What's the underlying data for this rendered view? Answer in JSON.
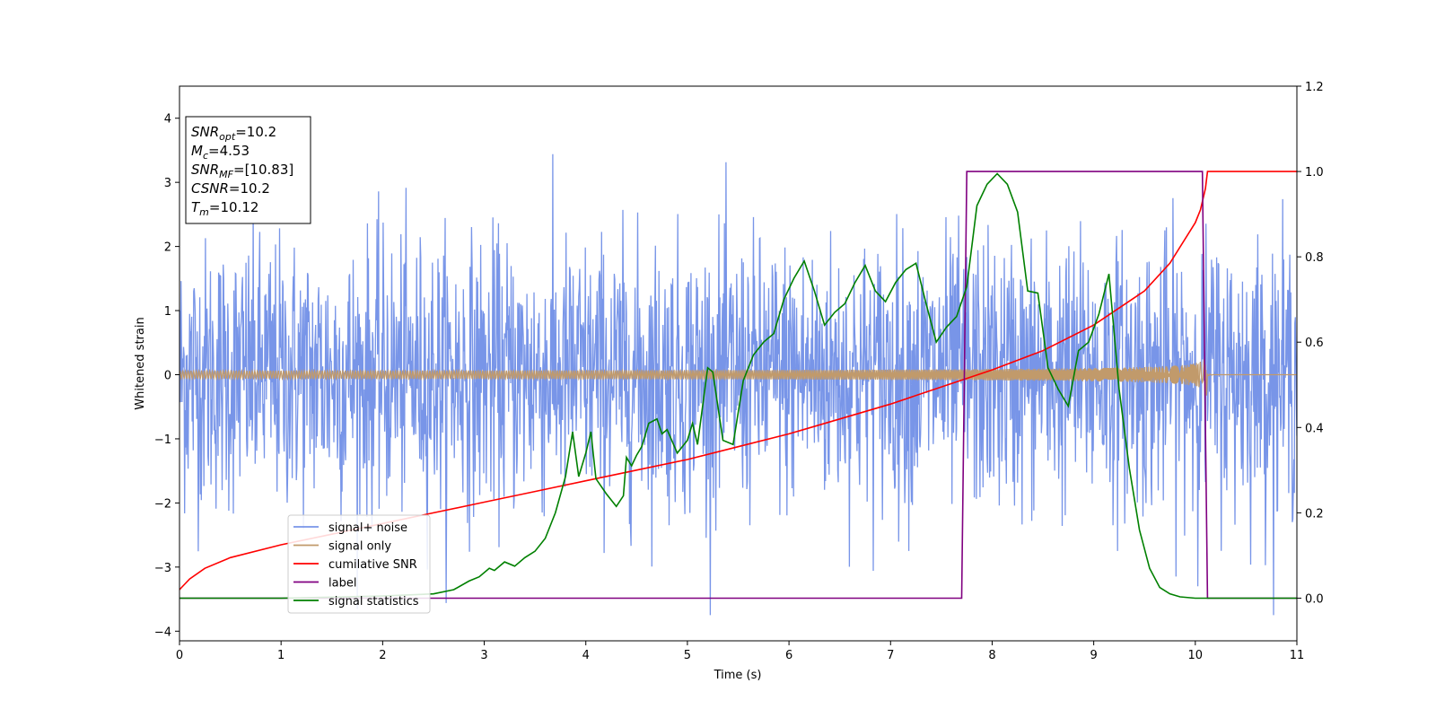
{
  "chart_data": {
    "type": "line",
    "xlabel": "Time (s)",
    "ylabel": "Whitened strain",
    "xlim": [
      0,
      11
    ],
    "ylim": [
      -4.15,
      4.5
    ],
    "y2lim": [
      -0.1,
      1.2
    ],
    "xticks": [
      "0",
      "1",
      "2",
      "3",
      "4",
      "5",
      "6",
      "7",
      "8",
      "9",
      "10",
      "11"
    ],
    "yticks": [
      "−4",
      "−3",
      "−2",
      "−1",
      "0",
      "1",
      "2",
      "3",
      "4"
    ],
    "y2ticks": [
      "0.0",
      "0.2",
      "0.4",
      "0.6",
      "0.8",
      "1.0",
      "1.2"
    ],
    "grid": false,
    "legend_position": "lower-left",
    "annotation": {
      "lines": [
        {
          "label": "SNR",
          "sub": "opt",
          "value": "=10.2"
        },
        {
          "label": "M",
          "sub": "c",
          "value": "=4.53"
        },
        {
          "label": "SNR",
          "sub": "MF",
          "value": "=[10.83]"
        },
        {
          "label": "CSNR",
          "sub": "",
          "value": "=10.2"
        },
        {
          "label": "T",
          "sub": "m",
          "value": "=10.12"
        }
      ]
    },
    "series": [
      {
        "name": "signal+ noise",
        "axis": "left",
        "color": "#7895e8",
        "style": "noise",
        "noise_sigma": 1.05,
        "range_min": -3.75,
        "range_max": 4.18,
        "duration": 11
      },
      {
        "name": "signal only",
        "axis": "left",
        "color": "#c19a6b",
        "style": "chirp",
        "merger_time": 10.12,
        "amplitude_start": 0.06,
        "amplitude_peak": 0.7,
        "ringdown_amplitude": 0.02
      },
      {
        "name": "cumilative SNR",
        "axis": "right",
        "color": "#ff0000",
        "x": [
          0,
          0.1,
          0.25,
          0.5,
          1,
          1.5,
          2,
          2.5,
          3,
          3.5,
          4,
          4.5,
          5,
          5.5,
          6,
          6.5,
          7,
          7.5,
          8,
          8.5,
          9,
          9.25,
          9.5,
          9.75,
          10.0,
          10.05,
          10.1,
          10.12,
          11
        ],
        "values": [
          0.02,
          0.045,
          0.07,
          0.095,
          0.125,
          0.15,
          0.175,
          0.2,
          0.225,
          0.25,
          0.275,
          0.3,
          0.325,
          0.355,
          0.385,
          0.42,
          0.455,
          0.495,
          0.535,
          0.58,
          0.64,
          0.68,
          0.72,
          0.785,
          0.88,
          0.91,
          0.96,
          1.0,
          1.0
        ]
      },
      {
        "name": "label",
        "axis": "right",
        "color": "#800080",
        "x": [
          0,
          7.7,
          7.75,
          10.07,
          10.12,
          11
        ],
        "values": [
          0.0,
          0.0,
          1.0,
          1.0,
          0.0,
          0.0
        ]
      },
      {
        "name": "signal statistics",
        "axis": "right",
        "color": "#008000",
        "x": [
          0,
          1,
          2,
          2.5,
          2.7,
          2.85,
          2.95,
          3.05,
          3.1,
          3.2,
          3.3,
          3.4,
          3.5,
          3.6,
          3.7,
          3.8,
          3.87,
          3.93,
          4.0,
          4.05,
          4.1,
          4.2,
          4.3,
          4.37,
          4.4,
          4.45,
          4.5,
          4.55,
          4.62,
          4.7,
          4.75,
          4.8,
          4.9,
          5.0,
          5.05,
          5.1,
          5.2,
          5.25,
          5.35,
          5.45,
          5.55,
          5.65,
          5.75,
          5.85,
          5.95,
          6.05,
          6.15,
          6.25,
          6.35,
          6.45,
          6.55,
          6.65,
          6.75,
          6.85,
          6.95,
          7.05,
          7.15,
          7.25,
          7.35,
          7.45,
          7.55,
          7.65,
          7.75,
          7.85,
          7.95,
          8.05,
          8.15,
          8.25,
          8.35,
          8.45,
          8.55,
          8.65,
          8.75,
          8.85,
          8.95,
          9.05,
          9.15,
          9.25,
          9.35,
          9.45,
          9.55,
          9.65,
          9.75,
          9.85,
          10.0,
          11
        ],
        "values": [
          0.0,
          0.0,
          0.005,
          0.01,
          0.02,
          0.04,
          0.05,
          0.07,
          0.065,
          0.085,
          0.075,
          0.095,
          0.11,
          0.14,
          0.2,
          0.285,
          0.39,
          0.285,
          0.34,
          0.39,
          0.28,
          0.245,
          0.215,
          0.24,
          0.33,
          0.31,
          0.335,
          0.355,
          0.41,
          0.42,
          0.385,
          0.395,
          0.34,
          0.37,
          0.41,
          0.36,
          0.54,
          0.53,
          0.37,
          0.36,
          0.51,
          0.57,
          0.6,
          0.62,
          0.7,
          0.75,
          0.79,
          0.72,
          0.64,
          0.67,
          0.69,
          0.74,
          0.78,
          0.72,
          0.695,
          0.74,
          0.77,
          0.785,
          0.69,
          0.6,
          0.635,
          0.66,
          0.73,
          0.92,
          0.97,
          0.995,
          0.97,
          0.905,
          0.72,
          0.715,
          0.54,
          0.49,
          0.45,
          0.58,
          0.6,
          0.665,
          0.76,
          0.49,
          0.305,
          0.16,
          0.07,
          0.025,
          0.01,
          0.003,
          0.0,
          0.0
        ]
      }
    ]
  }
}
